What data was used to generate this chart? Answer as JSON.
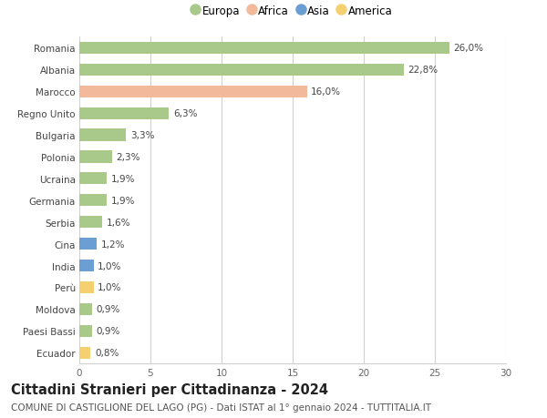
{
  "countries": [
    "Romania",
    "Albania",
    "Marocco",
    "Regno Unito",
    "Bulgaria",
    "Polonia",
    "Ucraina",
    "Germania",
    "Serbia",
    "Cina",
    "India",
    "Perù",
    "Moldova",
    "Paesi Bassi",
    "Ecuador"
  ],
  "values": [
    26.0,
    22.8,
    16.0,
    6.3,
    3.3,
    2.3,
    1.9,
    1.9,
    1.6,
    1.2,
    1.0,
    1.0,
    0.9,
    0.9,
    0.8
  ],
  "labels": [
    "26,0%",
    "22,8%",
    "16,0%",
    "6,3%",
    "3,3%",
    "2,3%",
    "1,9%",
    "1,9%",
    "1,6%",
    "1,2%",
    "1,0%",
    "1,0%",
    "0,9%",
    "0,9%",
    "0,8%"
  ],
  "continents": [
    "Europa",
    "Europa",
    "Africa",
    "Europa",
    "Europa",
    "Europa",
    "Europa",
    "Europa",
    "Europa",
    "Asia",
    "Asia",
    "America",
    "Europa",
    "Europa",
    "America"
  ],
  "colors": {
    "Europa": "#a8c98a",
    "Africa": "#f2ba9a",
    "Asia": "#6b9fd4",
    "America": "#f5d070"
  },
  "legend_order": [
    "Europa",
    "Africa",
    "Asia",
    "America"
  ],
  "legend_colors": [
    "#a8c98a",
    "#f2ba9a",
    "#6b9fd4",
    "#f5d070"
  ],
  "xlim": [
    0,
    30
  ],
  "xticks": [
    0,
    5,
    10,
    15,
    20,
    25,
    30
  ],
  "title": "Cittadini Stranieri per Cittadinanza - 2024",
  "subtitle": "COMUNE DI CASTIGLIONE DEL LAGO (PG) - Dati ISTAT al 1° gennaio 2024 - TUTTITALIA.IT",
  "bg_color": "#ffffff",
  "grid_color": "#d0d0d0",
  "bar_height": 0.55,
  "title_fontsize": 10.5,
  "subtitle_fontsize": 7.5,
  "label_fontsize": 7.5,
  "tick_fontsize": 7.5,
  "legend_fontsize": 8.5
}
